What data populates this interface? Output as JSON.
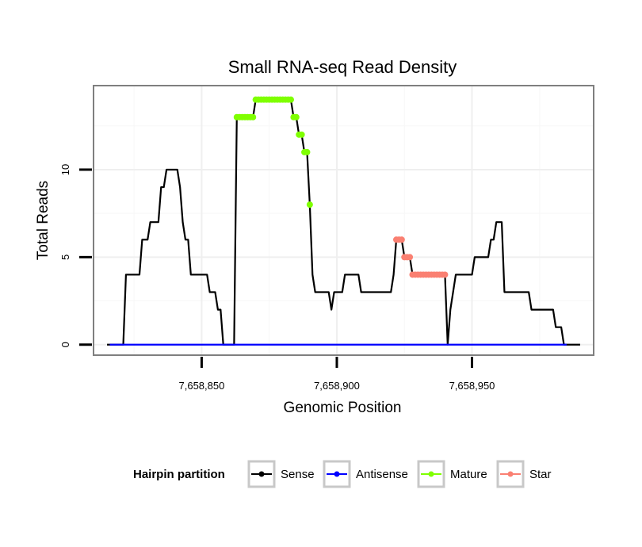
{
  "chart_data": {
    "type": "line",
    "title": "Small RNA-seq Read Density",
    "xlabel": "Genomic Position",
    "ylabel": "Total Reads",
    "xlim": [
      7658810,
      7658995
    ],
    "ylim": [
      -0.6,
      14.8
    ],
    "x_ticks": [
      {
        "value": 7658850,
        "label": "7,658,850"
      },
      {
        "value": 7658900,
        "label": "7,658,900"
      },
      {
        "value": 7658950,
        "label": "7,658,950"
      }
    ],
    "y_ticks": [
      {
        "value": 0,
        "label": "0"
      },
      {
        "value": 5,
        "label": "5"
      },
      {
        "value": 10,
        "label": "10"
      }
    ],
    "grid": true,
    "legend": {
      "title": "Hairpin partition",
      "position": "bottom",
      "entries": [
        {
          "name": "Sense",
          "color": "#000000"
        },
        {
          "name": "Antisense",
          "color": "#0000ff"
        },
        {
          "name": "Mature",
          "color": "#7fff00"
        },
        {
          "name": "Star",
          "color": "#fa8072"
        }
      ]
    },
    "series": [
      {
        "name": "Sense",
        "color": "#000000",
        "style": "line",
        "points": [
          [
            7658815,
            0
          ],
          [
            7658821,
            0
          ],
          [
            7658822,
            4
          ],
          [
            7658827,
            4
          ],
          [
            7658828,
            6
          ],
          [
            7658830,
            6
          ],
          [
            7658831,
            7
          ],
          [
            7658834,
            7
          ],
          [
            7658835,
            9
          ],
          [
            7658836,
            9
          ],
          [
            7658837,
            10
          ],
          [
            7658841,
            10
          ],
          [
            7658842,
            9
          ],
          [
            7658843,
            7
          ],
          [
            7658844,
            6
          ],
          [
            7658845,
            6
          ],
          [
            7658846,
            4
          ],
          [
            7658852,
            4
          ],
          [
            7658853,
            3
          ],
          [
            7658855,
            3
          ],
          [
            7658856,
            2
          ],
          [
            7658857,
            2
          ],
          [
            7658858,
            0
          ],
          [
            7658862,
            0
          ],
          [
            7658863,
            13
          ],
          [
            7658869,
            13
          ],
          [
            7658870,
            14
          ],
          [
            7658883,
            14
          ],
          [
            7658884,
            13
          ],
          [
            7658885,
            13
          ],
          [
            7658886,
            12
          ],
          [
            7658887,
            12
          ],
          [
            7658888,
            11
          ],
          [
            7658889,
            11
          ],
          [
            7658890,
            8
          ],
          [
            7658891,
            4
          ],
          [
            7658892,
            3
          ],
          [
            7658897,
            3
          ],
          [
            7658898,
            2
          ],
          [
            7658899,
            3
          ],
          [
            7658902,
            3
          ],
          [
            7658903,
            4
          ],
          [
            7658908,
            4
          ],
          [
            7658909,
            3
          ],
          [
            7658920,
            3
          ],
          [
            7658921,
            4
          ],
          [
            7658922,
            6
          ],
          [
            7658924,
            6
          ],
          [
            7658925,
            5
          ],
          [
            7658927,
            5
          ],
          [
            7658928,
            4
          ],
          [
            7658940,
            4
          ],
          [
            7658941,
            0
          ],
          [
            7658942,
            2
          ],
          [
            7658943,
            3
          ],
          [
            7658944,
            4
          ],
          [
            7658950,
            4
          ],
          [
            7658951,
            5
          ],
          [
            7658956,
            5
          ],
          [
            7658957,
            6
          ],
          [
            7658958,
            6
          ],
          [
            7658959,
            7
          ],
          [
            7658961,
            7
          ],
          [
            7658962,
            3
          ],
          [
            7658971,
            3
          ],
          [
            7658972,
            2
          ],
          [
            7658980,
            2
          ],
          [
            7658981,
            1
          ],
          [
            7658983,
            1
          ],
          [
            7658984,
            0
          ],
          [
            7658990,
            0
          ]
        ]
      },
      {
        "name": "Antisense",
        "color": "#0000ff",
        "style": "line",
        "points": [
          [
            7658816,
            0
          ],
          [
            7658985,
            0
          ]
        ]
      },
      {
        "name": "Mature",
        "color": "#7fff00",
        "style": "points",
        "points": [
          [
            7658863,
            13
          ],
          [
            7658864,
            13
          ],
          [
            7658865,
            13
          ],
          [
            7658866,
            13
          ],
          [
            7658867,
            13
          ],
          [
            7658868,
            13
          ],
          [
            7658869,
            13
          ],
          [
            7658870,
            14
          ],
          [
            7658871,
            14
          ],
          [
            7658872,
            14
          ],
          [
            7658873,
            14
          ],
          [
            7658874,
            14
          ],
          [
            7658875,
            14
          ],
          [
            7658876,
            14
          ],
          [
            7658877,
            14
          ],
          [
            7658878,
            14
          ],
          [
            7658879,
            14
          ],
          [
            7658880,
            14
          ],
          [
            7658881,
            14
          ],
          [
            7658882,
            14
          ],
          [
            7658883,
            14
          ],
          [
            7658884,
            13
          ],
          [
            7658885,
            13
          ],
          [
            7658886,
            12
          ],
          [
            7658887,
            12
          ],
          [
            7658888,
            11
          ],
          [
            7658889,
            11
          ],
          [
            7658890,
            8
          ]
        ]
      },
      {
        "name": "Star",
        "color": "#fa8072",
        "style": "points",
        "points": [
          [
            7658922,
            6
          ],
          [
            7658923,
            6
          ],
          [
            7658924,
            6
          ],
          [
            7658925,
            5
          ],
          [
            7658926,
            5
          ],
          [
            7658927,
            5
          ],
          [
            7658928,
            4
          ],
          [
            7658929,
            4
          ],
          [
            7658930,
            4
          ],
          [
            7658931,
            4
          ],
          [
            7658932,
            4
          ],
          [
            7658933,
            4
          ],
          [
            7658934,
            4
          ],
          [
            7658935,
            4
          ],
          [
            7658936,
            4
          ],
          [
            7658937,
            4
          ],
          [
            7658938,
            4
          ],
          [
            7658939,
            4
          ],
          [
            7658940,
            4
          ]
        ]
      }
    ]
  }
}
